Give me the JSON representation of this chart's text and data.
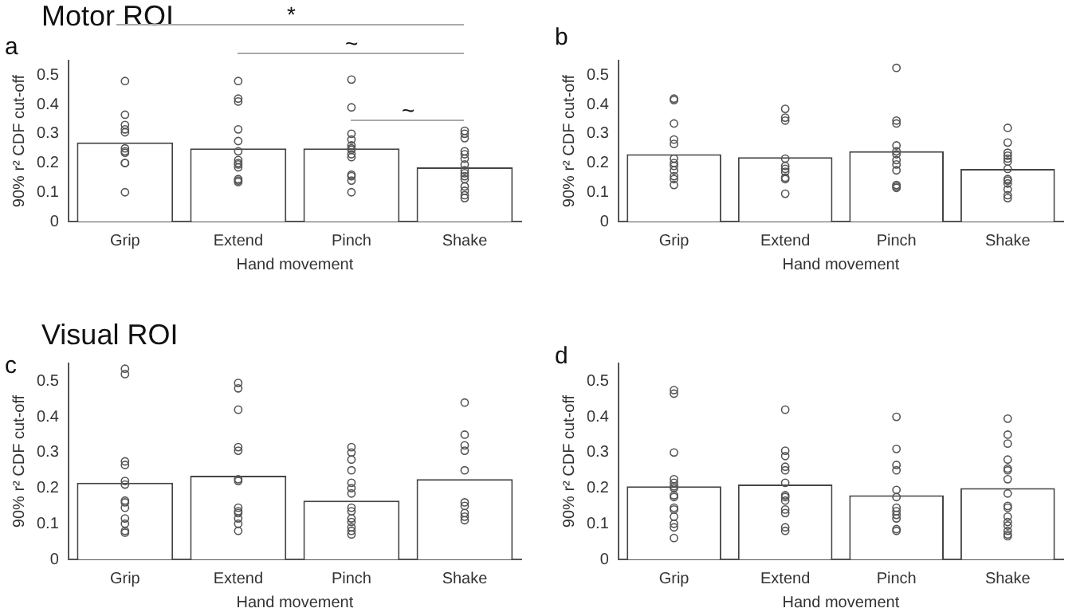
{
  "chart_data": [
    {
      "type": "bar",
      "title": "Motor ROI",
      "xlabel": "Hand movement",
      "ylabel": "90% r² CDF cut-off",
      "categories": [
        "Grip",
        "Extend",
        "Pinch",
        "Shake"
      ],
      "ylim": [
        0,
        0.55
      ],
      "yticks": [
        0,
        0.1,
        0.2,
        0.3,
        0.4,
        0.5
      ],
      "marker": "circle",
      "annotations": [
        "a",
        "*",
        "~",
        "~"
      ],
      "series": [
        {
          "type": "bar",
          "color": "#ffffff",
          "values": [
            0.27,
            0.25,
            0.25,
            0.185
          ]
        },
        {
          "type": "scatter",
          "color": "#555555",
          "x": [
            "Grip",
            "Grip",
            "Grip",
            "Grip",
            "Grip",
            "Grip",
            "Grip",
            "Grip",
            "Grip",
            "Grip",
            "Grip",
            "Extend",
            "Extend",
            "Extend",
            "Extend",
            "Extend",
            "Extend",
            "Extend",
            "Extend",
            "Extend",
            "Extend",
            "Extend",
            "Extend",
            "Extend",
            "Pinch",
            "Pinch",
            "Pinch",
            "Pinch",
            "Pinch",
            "Pinch",
            "Pinch",
            "Pinch",
            "Pinch",
            "Pinch",
            "Pinch",
            "Pinch",
            "Pinch",
            "Shake",
            "Shake",
            "Shake",
            "Shake",
            "Shake",
            "Shake",
            "Shake",
            "Shake",
            "Shake",
            "Shake",
            "Shake",
            "Shake",
            "Shake",
            "Shake",
            "Shake"
          ],
          "values": [
            0.48,
            0.365,
            0.33,
            0.315,
            0.305,
            0.25,
            0.24,
            0.235,
            0.2,
            0.2,
            0.1,
            0.48,
            0.42,
            0.41,
            0.315,
            0.275,
            0.24,
            0.21,
            0.2,
            0.195,
            0.185,
            0.145,
            0.14,
            0.135,
            0.485,
            0.39,
            0.3,
            0.28,
            0.26,
            0.25,
            0.245,
            0.23,
            0.22,
            0.16,
            0.155,
            0.14,
            0.1,
            0.31,
            0.3,
            0.285,
            0.24,
            0.23,
            0.215,
            0.195,
            0.175,
            0.165,
            0.155,
            0.145,
            0.12,
            0.105,
            0.09,
            0.08
          ]
        }
      ]
    },
    {
      "type": "bar",
      "xlabel": "Hand movement",
      "ylabel": "90% r² CDF cut-off",
      "categories": [
        "Grip",
        "Extend",
        "Pinch",
        "Shake"
      ],
      "ylim": [
        0,
        0.55
      ],
      "yticks": [
        0,
        0.1,
        0.2,
        0.3,
        0.4,
        0.5
      ],
      "marker": "circle",
      "annotations": [
        "b"
      ],
      "series": [
        {
          "type": "bar",
          "color": "#ffffff",
          "values": [
            0.23,
            0.22,
            0.24,
            0.18
          ]
        },
        {
          "type": "scatter",
          "color": "#555555",
          "x": [
            "Grip",
            "Grip",
            "Grip",
            "Grip",
            "Grip",
            "Grip",
            "Grip",
            "Grip",
            "Grip",
            "Grip",
            "Grip",
            "Grip",
            "Extend",
            "Extend",
            "Extend",
            "Extend",
            "Extend",
            "Extend",
            "Extend",
            "Extend",
            "Extend",
            "Extend",
            "Pinch",
            "Pinch",
            "Pinch",
            "Pinch",
            "Pinch",
            "Pinch",
            "Pinch",
            "Pinch",
            "Pinch",
            "Pinch",
            "Pinch",
            "Pinch",
            "Shake",
            "Shake",
            "Shake",
            "Shake",
            "Shake",
            "Shake",
            "Shake",
            "Shake",
            "Shake",
            "Shake",
            "Shake",
            "Shake",
            "Shake"
          ],
          "values": [
            0.42,
            0.415,
            0.335,
            0.28,
            0.265,
            0.215,
            0.2,
            0.19,
            0.175,
            0.155,
            0.145,
            0.125,
            0.385,
            0.355,
            0.345,
            0.215,
            0.19,
            0.18,
            0.17,
            0.15,
            0.145,
            0.095,
            0.525,
            0.345,
            0.335,
            0.26,
            0.24,
            0.23,
            0.21,
            0.195,
            0.175,
            0.125,
            0.12,
            0.115,
            0.32,
            0.27,
            0.235,
            0.225,
            0.215,
            0.205,
            0.18,
            0.145,
            0.14,
            0.13,
            0.11,
            0.09,
            0.08
          ]
        }
      ]
    },
    {
      "type": "bar",
      "title": "Visual ROI",
      "xlabel": "Hand movement",
      "ylabel": "90% r² CDF cut-off",
      "categories": [
        "Grip",
        "Extend",
        "Pinch",
        "Shake"
      ],
      "ylim": [
        0,
        0.55
      ],
      "yticks": [
        0,
        0.1,
        0.2,
        0.3,
        0.4,
        0.5
      ],
      "marker": "circle",
      "annotations": [
        "c"
      ],
      "series": [
        {
          "type": "bar",
          "color": "#ffffff",
          "values": [
            0.215,
            0.235,
            0.165,
            0.225
          ]
        },
        {
          "type": "scatter",
          "color": "#555555",
          "x": [
            "Grip",
            "Grip",
            "Grip",
            "Grip",
            "Grip",
            "Grip",
            "Grip",
            "Grip",
            "Grip",
            "Grip",
            "Grip",
            "Grip",
            "Grip",
            "Extend",
            "Extend",
            "Extend",
            "Extend",
            "Extend",
            "Extend",
            "Extend",
            "Extend",
            "Extend",
            "Extend",
            "Extend",
            "Extend",
            "Extend",
            "Pinch",
            "Pinch",
            "Pinch",
            "Pinch",
            "Pinch",
            "Pinch",
            "Pinch",
            "Pinch",
            "Pinch",
            "Pinch",
            "Pinch",
            "Pinch",
            "Pinch",
            "Pinch",
            "Shake",
            "Shake",
            "Shake",
            "Shake",
            "Shake",
            "Shake",
            "Shake",
            "Shake",
            "Shake",
            "Shake"
          ],
          "values": [
            0.535,
            0.52,
            0.275,
            0.265,
            0.22,
            0.21,
            0.165,
            0.16,
            0.145,
            0.115,
            0.1,
            0.08,
            0.075,
            0.495,
            0.48,
            0.42,
            0.315,
            0.305,
            0.225,
            0.22,
            0.145,
            0.135,
            0.13,
            0.115,
            0.1,
            0.08,
            0.315,
            0.3,
            0.28,
            0.25,
            0.215,
            0.2,
            0.185,
            0.145,
            0.135,
            0.115,
            0.105,
            0.09,
            0.08,
            0.07,
            0.44,
            0.35,
            0.32,
            0.305,
            0.25,
            0.16,
            0.15,
            0.13,
            0.12,
            0.11
          ]
        }
      ]
    },
    {
      "type": "bar",
      "xlabel": "Hand movement",
      "ylabel": "90% r² CDF cut-off",
      "categories": [
        "Grip",
        "Extend",
        "Pinch",
        "Shake"
      ],
      "ylim": [
        0,
        0.55
      ],
      "yticks": [
        0,
        0.1,
        0.2,
        0.3,
        0.4,
        0.5
      ],
      "marker": "circle",
      "annotations": [
        "d"
      ],
      "series": [
        {
          "type": "bar",
          "color": "#ffffff",
          "values": [
            0.205,
            0.21,
            0.18,
            0.2
          ]
        },
        {
          "type": "scatter",
          "color": "#555555",
          "x": [
            "Grip",
            "Grip",
            "Grip",
            "Grip",
            "Grip",
            "Grip",
            "Grip",
            "Grip",
            "Grip",
            "Grip",
            "Grip",
            "Grip",
            "Grip",
            "Grip",
            "Grip",
            "Extend",
            "Extend",
            "Extend",
            "Extend",
            "Extend",
            "Extend",
            "Extend",
            "Extend",
            "Extend",
            "Extend",
            "Extend",
            "Extend",
            "Extend",
            "Pinch",
            "Pinch",
            "Pinch",
            "Pinch",
            "Pinch",
            "Pinch",
            "Pinch",
            "Pinch",
            "Pinch",
            "Pinch",
            "Pinch",
            "Pinch",
            "Shake",
            "Shake",
            "Shake",
            "Shake",
            "Shake",
            "Shake",
            "Shake",
            "Shake",
            "Shake",
            "Shake",
            "Shake",
            "Shake",
            "Shake",
            "Shake",
            "Shake",
            "Shake"
          ],
          "values": [
            0.475,
            0.465,
            0.3,
            0.225,
            0.215,
            0.205,
            0.2,
            0.18,
            0.175,
            0.145,
            0.14,
            0.12,
            0.1,
            0.09,
            0.06,
            0.42,
            0.305,
            0.29,
            0.26,
            0.25,
            0.215,
            0.18,
            0.175,
            0.165,
            0.14,
            0.13,
            0.09,
            0.08,
            0.4,
            0.31,
            0.265,
            0.25,
            0.195,
            0.175,
            0.145,
            0.135,
            0.125,
            0.115,
            0.085,
            0.08,
            0.395,
            0.35,
            0.325,
            0.28,
            0.255,
            0.25,
            0.225,
            0.185,
            0.15,
            0.145,
            0.12,
            0.105,
            0.095,
            0.08,
            0.07,
            0.065
          ]
        }
      ]
    }
  ]
}
